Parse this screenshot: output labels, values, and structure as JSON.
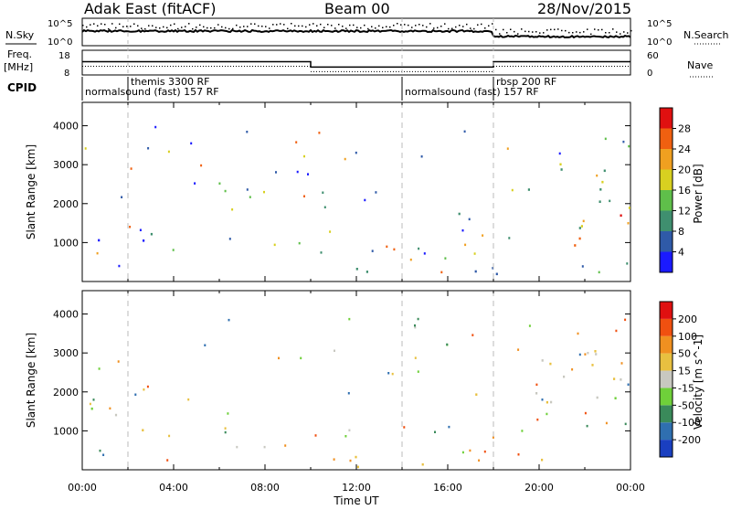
{
  "header": {
    "radar": "Adak East (fitACF)",
    "beam": "Beam 00",
    "date": "28/Nov/2015"
  },
  "left_labels": {
    "nsky": "N.Sky",
    "freq": "Freq.",
    "freq_unit": "[MHz]",
    "cpid": "CPID"
  },
  "right_labels": {
    "nsearch": "N.Search",
    "nave": "Nave"
  },
  "noise_axis": {
    "top": "10^5",
    "bottom": "10^0"
  },
  "freq_axis": {
    "left_ticks": [
      "18",
      "8"
    ],
    "right_ticks": [
      "60",
      "0"
    ]
  },
  "cpid_segments": [
    {
      "label": "normalsound (fast) 157 RF",
      "start_h": 0,
      "end_h": 14
    },
    {
      "label": "themis 3300 RF",
      "start_h": 2,
      "end_h": 14
    },
    {
      "label": "normalsound (fast) 157 RF",
      "start_h": 14,
      "end_h": 24
    },
    {
      "label": "rbsp 200 RF",
      "start_h": 18,
      "end_h": 24
    }
  ],
  "x_axis": {
    "title": "Time UT",
    "ticks": [
      "00:00",
      "04:00",
      "08:00",
      "12:00",
      "16:00",
      "20:00",
      "00:00"
    ]
  },
  "y_axis": {
    "title": "Slant Range [km]",
    "ticks": [
      "1000",
      "2000",
      "3000",
      "4000"
    ]
  },
  "power_colorbar": {
    "title": "Power [dB]",
    "ticks": [
      "4",
      "8",
      "12",
      "16",
      "20",
      "24",
      "28"
    ],
    "colors": [
      "#1a1aff",
      "#2f5aa8",
      "#3f8f6f",
      "#5fbf4a",
      "#d8d020",
      "#f0a020",
      "#f06010",
      "#e01010"
    ]
  },
  "velocity_colorbar": {
    "title": "Velocity [m s^-1]",
    "ticks": [
      "200",
      "100",
      "50",
      "15",
      "-15",
      "-50",
      "-100",
      "-200"
    ],
    "colors": [
      "#1a3fc0",
      "#2f6fb0",
      "#3a8a5a",
      "#6fd03a",
      "#c8c8c0",
      "#e8c040",
      "#f09020",
      "#f05010",
      "#e01010"
    ]
  },
  "chart_data": {
    "type": "heatmap",
    "x": {
      "label": "Time UT",
      "unit": "hours",
      "range": [
        0,
        24
      ],
      "tick_values": [
        0,
        4,
        8,
        12,
        16,
        20,
        24
      ]
    },
    "y": {
      "label": "Slant Range [km]",
      "range": [
        0,
        4600
      ],
      "tick_values": [
        1000,
        2000,
        3000,
        4000
      ]
    },
    "dashed_lines_h": [
      2,
      14,
      18
    ],
    "frequency_mhz": [
      {
        "start_h": 0,
        "end_h": 10,
        "value": 13.5
      },
      {
        "start_h": 10,
        "end_h": 18,
        "value": 10.5
      },
      {
        "start_h": 18,
        "end_h": 24,
        "value": 13.5
      }
    ],
    "panels": [
      {
        "name": "Power",
        "unit": "dB",
        "regions": [
          {
            "t0": 0.0,
            "t1": 3.5,
            "r0": 900,
            "r1": 1650,
            "value": 6
          },
          {
            "t0": 11.5,
            "t1": 24,
            "r0": 100,
            "r1": 400,
            "value": 8
          },
          {
            "t0": 15.5,
            "t1": 17.5,
            "r0": 1700,
            "r1": 2100,
            "value": 6
          },
          {
            "t0": 19.5,
            "t1": 24,
            "r0": 1400,
            "r1": 3200,
            "value": 14
          },
          {
            "t0": 21.5,
            "t1": 24,
            "r0": 700,
            "r1": 1800,
            "value": 26
          }
        ]
      },
      {
        "name": "Velocity",
        "unit": "m s^-1",
        "regions": [
          {
            "t0": 0.0,
            "t1": 3.5,
            "r0": 900,
            "r1": 1650,
            "value": 0
          },
          {
            "t0": 11.5,
            "t1": 24,
            "r0": 100,
            "r1": 400,
            "value": -40
          },
          {
            "t0": 15.5,
            "t1": 17.5,
            "r0": 1700,
            "r1": 2100,
            "value": -30
          },
          {
            "t0": 19.5,
            "t1": 24,
            "r0": 700,
            "r1": 3200,
            "value": 0
          }
        ]
      }
    ]
  }
}
